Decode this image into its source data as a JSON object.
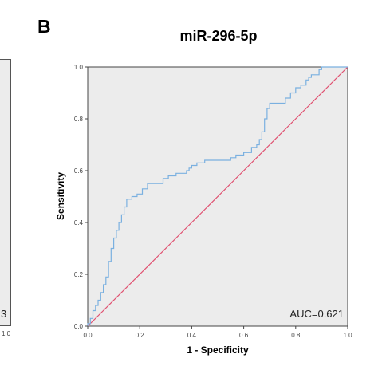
{
  "panel_label": "B",
  "left_partial": {
    "text": "3",
    "tick": "1.0"
  },
  "chart_data": {
    "type": "line",
    "title": "miR-296-5p",
    "xlabel": "1 - Specificity",
    "ylabel": "Sensitivity",
    "xlim": [
      0,
      1
    ],
    "ylim": [
      0,
      1
    ],
    "x_ticks": [
      "0.0",
      "0.2",
      "0.4",
      "0.6",
      "0.8",
      "1.0"
    ],
    "y_ticks": [
      "0.0",
      "0.2",
      "0.4",
      "0.6",
      "0.8",
      "1.0"
    ],
    "grid": false,
    "annotation": "AUC=0.621",
    "colors": {
      "roc": "#7ab0e0",
      "reference": "#e05070",
      "plot_bg": "#ececec"
    },
    "series": [
      {
        "values": [
          [
            0,
            0
          ],
          [
            0,
            0.01
          ],
          [
            0.01,
            0.01
          ],
          [
            0.01,
            0.03
          ],
          [
            0.02,
            0.03
          ],
          [
            0.02,
            0.06
          ],
          [
            0.03,
            0.06
          ],
          [
            0.03,
            0.08
          ],
          [
            0.04,
            0.08
          ],
          [
            0.04,
            0.1
          ],
          [
            0.05,
            0.1
          ],
          [
            0.05,
            0.13
          ],
          [
            0.06,
            0.13
          ],
          [
            0.06,
            0.16
          ],
          [
            0.07,
            0.16
          ],
          [
            0.07,
            0.19
          ],
          [
            0.08,
            0.19
          ],
          [
            0.08,
            0.25
          ],
          [
            0.09,
            0.25
          ],
          [
            0.09,
            0.3
          ],
          [
            0.1,
            0.3
          ],
          [
            0.1,
            0.34
          ],
          [
            0.11,
            0.34
          ],
          [
            0.11,
            0.37
          ],
          [
            0.12,
            0.37
          ],
          [
            0.12,
            0.4
          ],
          [
            0.13,
            0.4
          ],
          [
            0.13,
            0.43
          ],
          [
            0.14,
            0.43
          ],
          [
            0.14,
            0.46
          ],
          [
            0.15,
            0.46
          ],
          [
            0.15,
            0.49
          ],
          [
            0.17,
            0.49
          ],
          [
            0.17,
            0.5
          ],
          [
            0.19,
            0.5
          ],
          [
            0.19,
            0.51
          ],
          [
            0.21,
            0.51
          ],
          [
            0.21,
            0.53
          ],
          [
            0.23,
            0.53
          ],
          [
            0.23,
            0.55
          ],
          [
            0.29,
            0.55
          ],
          [
            0.29,
            0.57
          ],
          [
            0.31,
            0.57
          ],
          [
            0.31,
            0.58
          ],
          [
            0.34,
            0.58
          ],
          [
            0.34,
            0.59
          ],
          [
            0.38,
            0.59
          ],
          [
            0.38,
            0.6
          ],
          [
            0.39,
            0.6
          ],
          [
            0.39,
            0.61
          ],
          [
            0.4,
            0.61
          ],
          [
            0.4,
            0.62
          ],
          [
            0.42,
            0.62
          ],
          [
            0.42,
            0.63
          ],
          [
            0.45,
            0.63
          ],
          [
            0.45,
            0.64
          ],
          [
            0.55,
            0.64
          ],
          [
            0.55,
            0.65
          ],
          [
            0.57,
            0.65
          ],
          [
            0.57,
            0.66
          ],
          [
            0.6,
            0.66
          ],
          [
            0.6,
            0.67
          ],
          [
            0.63,
            0.67
          ],
          [
            0.63,
            0.69
          ],
          [
            0.65,
            0.69
          ],
          [
            0.65,
            0.7
          ],
          [
            0.66,
            0.7
          ],
          [
            0.66,
            0.72
          ],
          [
            0.67,
            0.72
          ],
          [
            0.67,
            0.75
          ],
          [
            0.68,
            0.75
          ],
          [
            0.68,
            0.8
          ],
          [
            0.69,
            0.8
          ],
          [
            0.69,
            0.84
          ],
          [
            0.7,
            0.84
          ],
          [
            0.7,
            0.86
          ],
          [
            0.76,
            0.86
          ],
          [
            0.76,
            0.88
          ],
          [
            0.78,
            0.88
          ],
          [
            0.78,
            0.9
          ],
          [
            0.8,
            0.9
          ],
          [
            0.8,
            0.92
          ],
          [
            0.82,
            0.92
          ],
          [
            0.82,
            0.93
          ],
          [
            0.84,
            0.93
          ],
          [
            0.84,
            0.95
          ],
          [
            0.85,
            0.95
          ],
          [
            0.85,
            0.96
          ],
          [
            0.86,
            0.96
          ],
          [
            0.86,
            0.97
          ],
          [
            0.89,
            0.97
          ],
          [
            0.89,
            0.99
          ],
          [
            0.9,
            0.99
          ],
          [
            0.9,
            1.0
          ],
          [
            1.0,
            1.0
          ]
        ]
      },
      {
        "values": [
          [
            0,
            0
          ],
          [
            1,
            1
          ]
        ]
      }
    ]
  }
}
